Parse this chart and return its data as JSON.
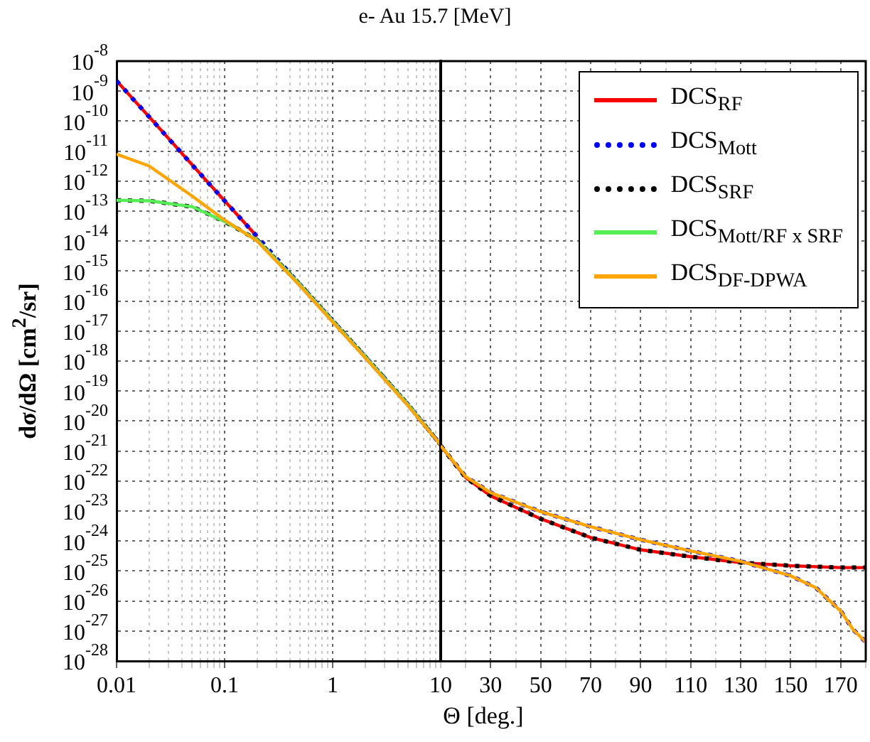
{
  "chart_data": [
    {
      "type": "line",
      "title": "e- Au 15.7 [MeV]",
      "xlabel": "Θ [deg.]",
      "ylabel": "dσ/dΩ [cm$^{2}$/sr]",
      "log": "xy",
      "grid": true,
      "x": [
        0.01,
        0.02,
        0.05,
        0.1,
        0.2,
        0.5,
        1,
        2,
        5,
        10
      ],
      "xlim": [
        0.01,
        10
      ],
      "xticks": [
        0.01,
        {
          "value": 0.02,
          "label": null
        },
        {
          "value": 0.03,
          "label": null
        },
        {
          "value": 0.04,
          "label": null
        },
        {
          "value": 0.05,
          "label": null
        },
        {
          "value": 0.06,
          "label": null
        },
        {
          "value": 0.07,
          "label": null
        },
        {
          "value": 0.08,
          "label": null
        },
        {
          "value": 0.09,
          "label": null
        },
        0.1,
        {
          "value": 0.2,
          "label": null
        },
        {
          "value": 0.3,
          "label": null
        },
        {
          "value": 0.4,
          "label": null
        },
        {
          "value": 0.5,
          "label": null
        },
        {
          "value": 0.6,
          "label": null
        },
        {
          "value": 0.7,
          "label": null
        },
        {
          "value": 0.8,
          "label": null
        },
        {
          "value": 0.9,
          "label": null
        },
        1,
        {
          "value": 2,
          "label": null
        },
        {
          "value": 3,
          "label": null
        },
        {
          "value": 4,
          "label": null
        },
        {
          "value": 5,
          "label": null
        },
        {
          "value": 6,
          "label": null
        },
        {
          "value": 7,
          "label": null
        },
        {
          "value": 8,
          "label": null
        },
        {
          "value": 9,
          "label": null
        },
        10
      ],
      "ylim": [
        1e-28,
        1e-08
      ],
      "yticks": [
        {
          "value": 1e-08,
          "label": "10$^{-8}$"
        },
        {
          "value": 1e-09,
          "label": "10$^{-9}$"
        },
        {
          "value": 1e-10,
          "label": "10$^{-10}$"
        },
        {
          "value": 1e-11,
          "label": "10$^{-11}$"
        },
        {
          "value": 1e-12,
          "label": "10$^{-12}$"
        },
        {
          "value": 1e-13,
          "label": "10$^{-13}$"
        },
        {
          "value": 1e-14,
          "label": "10$^{-14}$"
        },
        {
          "value": 1e-15,
          "label": "10$^{-15}$"
        },
        {
          "value": 1e-16,
          "label": "10$^{-16}$"
        },
        {
          "value": 1e-17,
          "label": "10$^{-17}$"
        },
        {
          "value": 1e-18,
          "label": "10$^{-18}$"
        },
        {
          "value": 1e-19,
          "label": "10$^{-19}$"
        },
        {
          "value": 1e-20,
          "label": "10$^{-20}$"
        },
        {
          "value": 1e-21,
          "label": "10$^{-21}$"
        },
        {
          "value": 1e-22,
          "label": "10$^{-22}$"
        },
        {
          "value": 1e-23,
          "label": "10$^{-23}$"
        },
        {
          "value": 1e-24,
          "label": "10$^{-24}$"
        },
        {
          "value": 1e-25,
          "label": "10$^{-25}$"
        },
        {
          "value": 1e-26,
          "label": "10$^{-26}$"
        },
        {
          "value": 1e-27,
          "label": "10$^{-27}$"
        },
        {
          "value": 1e-28,
          "label": "10$^{-28}$"
        }
      ],
      "series": [
        {
          "color": "#ff0000",
          "line_style": "solid",
          "values": [
            2.2e-09,
            1.4e-10,
            3.5e-12,
            2.2e-13,
            1.4e-14,
            null,
            null,
            null,
            null,
            null
          ]
        },
        {
          "color": "#0000ff",
          "line_style": "dotted",
          "values": [
            2.2e-09,
            1.4e-10,
            3.5e-12,
            2.2e-13,
            1.4e-14,
            3.5e-16,
            2.2e-17,
            1.4e-18,
            3.5e-20,
            1.6e-21
          ]
        },
        {
          "color": "#000000",
          "line_style": "dotted",
          "values": [
            2.3e-13,
            2.2e-13,
            1.4e-13,
            4.5e-14,
            1.1e-14,
            3.5e-16,
            2.2e-17,
            1.4e-18,
            3.5e-20,
            1.6e-21
          ]
        },
        {
          "color": "#55ee55",
          "line_style": "solid",
          "values": [
            2.3e-13,
            2.2e-13,
            1.4e-13,
            4.5e-14,
            1.1e-14,
            3.5e-16,
            2.2e-17,
            1.4e-18,
            3.5e-20,
            1.6e-21
          ]
        },
        {
          "color": "#ffa500",
          "line_style": "solid",
          "values": [
            7.9e-12,
            3.2e-12,
            3.2e-13,
            5e-14,
            1e-14,
            3.2e-16,
            2e-17,
            1.3e-18,
            3.2e-20,
            1.6e-21
          ]
        }
      ]
    },
    {
      "type": "line",
      "log": "y",
      "grid": true,
      "legend": "top right",
      "tick_labels": "x",
      "xlim": [
        10,
        180
      ],
      "xticks": [
        {
          "value": 10,
          "label": null
        },
        {
          "value": 20,
          "label": null
        },
        30,
        {
          "value": 40,
          "label": null
        },
        50,
        {
          "value": 60,
          "label": null
        },
        70,
        {
          "value": 80,
          "label": null
        },
        90,
        {
          "value": 100,
          "label": null
        },
        110,
        {
          "value": 120,
          "label": null
        },
        130,
        {
          "value": 140,
          "label": null
        },
        150,
        {
          "value": 160,
          "label": null
        },
        170,
        {
          "value": 180,
          "label": null
        }
      ],
      "ylim": [
        1e-28,
        1e-08
      ],
      "yticks": [
        1e-08,
        1e-09,
        1e-10,
        1e-11,
        1e-12,
        1e-13,
        1e-14,
        1e-15,
        1e-16,
        1e-17,
        1e-18,
        1e-19,
        1e-20,
        1e-21,
        1e-22,
        1e-23,
        1e-24,
        1e-25,
        1e-26,
        1e-27,
        1e-28
      ],
      "series": [
        {
          "name": "DCS$_{RF}$",
          "color": "#ff0000",
          "line_style": "solid",
          "x": [
            10,
            20,
            30,
            50,
            70,
            90,
            110,
            130,
            150,
            170,
            180
          ],
          "values": [
            1.5e-21,
            1.3e-22,
            3.2e-23,
            5.5e-24,
            1.3e-24,
            5.1e-25,
            3e-25,
            1.9e-25,
            1.5e-25,
            1.3e-25,
            1.3e-25
          ]
        },
        {
          "name": "DCS$_{Mott}$",
          "color": "#0000ff",
          "line_style": "dotted",
          "x": [
            10,
            20,
            30,
            50,
            70,
            90,
            110,
            130,
            150,
            160,
            170,
            175,
            180
          ],
          "values": [
            1.5e-21,
            1.4e-22,
            4.1e-23,
            9.5e-24,
            3e-24,
            1.1e-24,
            4.7e-25,
            2.1e-25,
            6.9e-26,
            2.8e-26,
            4.6e-27,
            1.1e-27,
            4.3e-28
          ]
        },
        {
          "name": "DCS$_{SRF}$",
          "color": "#000000",
          "line_style": "dotted",
          "x": [
            10,
            20,
            30,
            50,
            70,
            90,
            110,
            130,
            150,
            170,
            180
          ],
          "values": [
            1.5e-21,
            1.3e-22,
            3.2e-23,
            5.5e-24,
            1.3e-24,
            5.1e-25,
            3e-25,
            1.9e-25,
            1.5e-25,
            1.3e-25,
            1.3e-25
          ]
        },
        {
          "name": "DCS$_{Mott/RF x SRF}$",
          "color": "#55ee55",
          "line_style": "solid"
        },
        {
          "name": "DCS$_{DF-DPWA}$",
          "color": "#ffa500",
          "line_style": "solid",
          "x": [
            10,
            20,
            30,
            50,
            70,
            90,
            110,
            130,
            150,
            160,
            170,
            175,
            180
          ],
          "values": [
            1.5e-21,
            1.4e-22,
            4.1e-23,
            9.5e-24,
            3e-24,
            1.1e-24,
            4.7e-25,
            2.1e-25,
            6.9e-26,
            2.8e-26,
            4.6e-27,
            1.1e-27,
            4.3e-28
          ]
        }
      ]
    }
  ]
}
